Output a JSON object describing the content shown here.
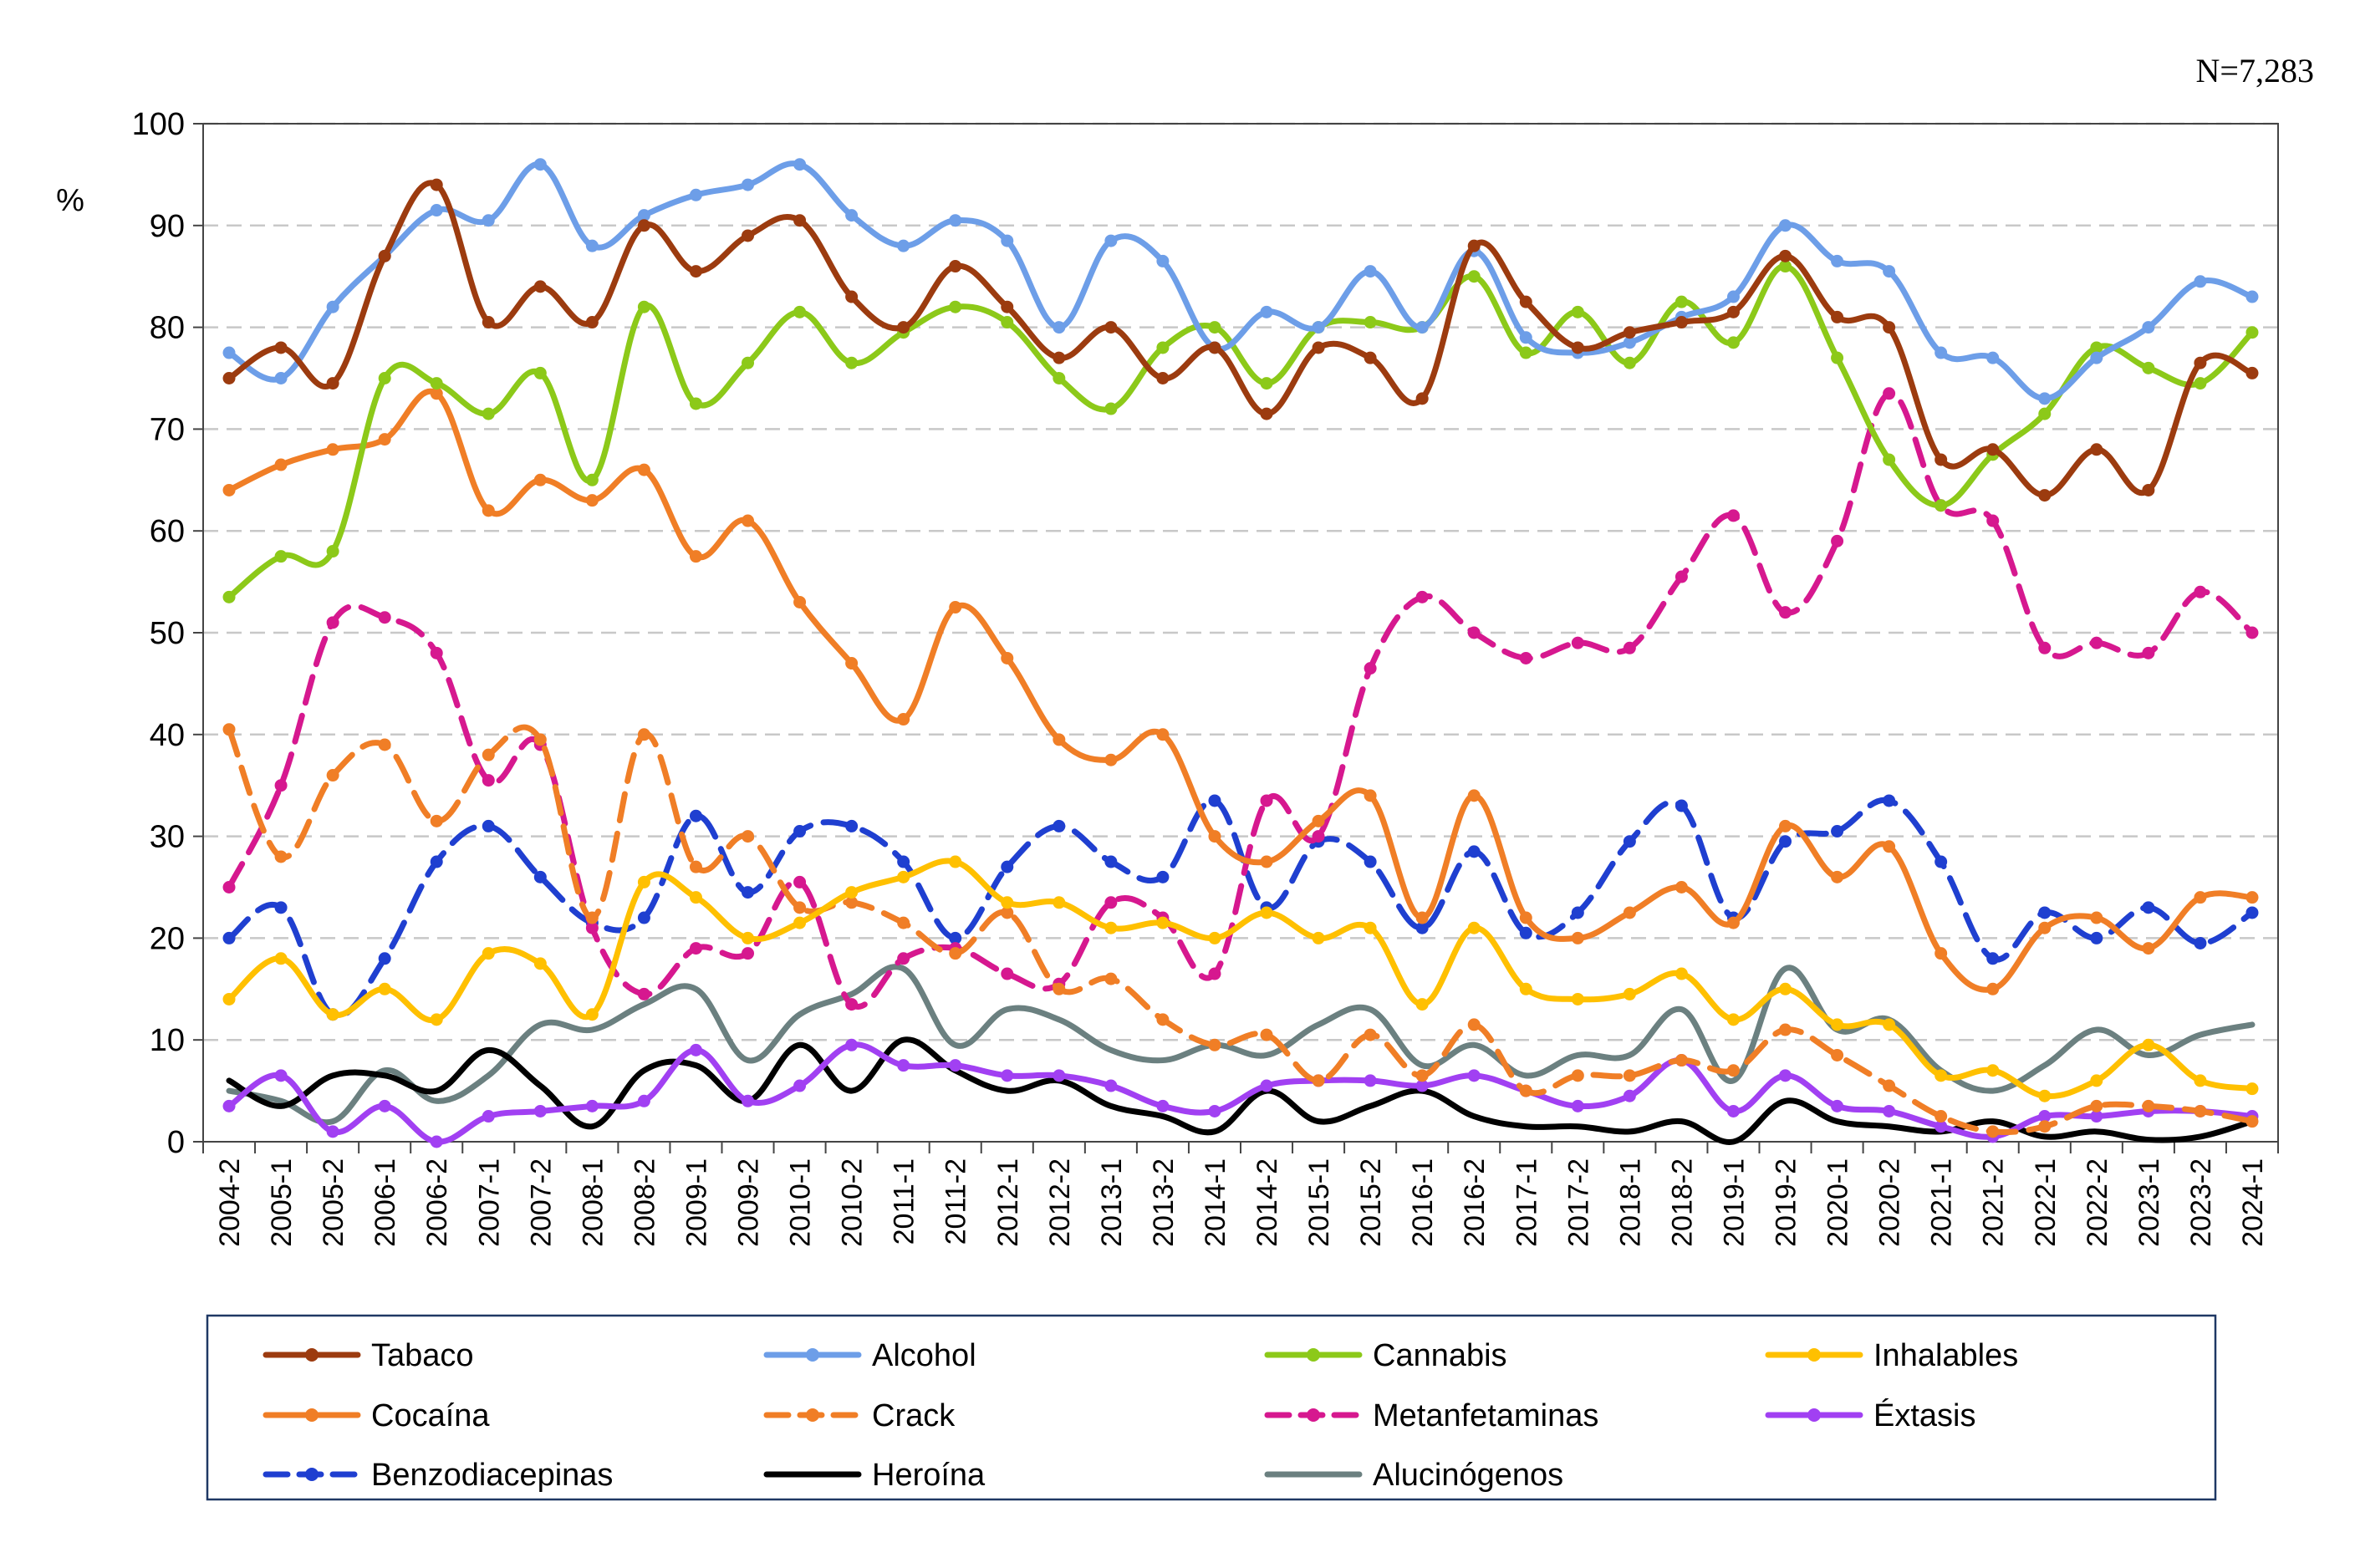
{
  "chart_data": {
    "type": "line",
    "note": "N=7,283",
    "ylabel": "%",
    "xlabel": "",
    "ylim": [
      0,
      100
    ],
    "yticks": [
      0,
      10,
      20,
      30,
      40,
      50,
      60,
      70,
      80,
      90,
      100
    ],
    "grid": "horizontal dashed",
    "legend_position": "bottom",
    "categories": [
      "2004-2",
      "2005-1",
      "2005-2",
      "2006-1",
      "2006-2",
      "2007-1",
      "2007-2",
      "2008-1",
      "2008-2",
      "2009-1",
      "2009-2",
      "2010-1",
      "2010-2",
      "2011-1",
      "2011-2",
      "2012-1",
      "2012-2",
      "2013-1",
      "2013-2",
      "2014-1",
      "2014-2",
      "2015-1",
      "2015-2",
      "2016-1",
      "2016-2",
      "2017-1",
      "2017-2",
      "2018-1",
      "2018-2",
      "2019-1",
      "2019-2",
      "2020-1",
      "2020-2",
      "2021-1",
      "2021-2",
      "2022-1",
      "2022-2",
      "2023-1",
      "2023-2",
      "2024-1"
    ],
    "series": [
      {
        "name": "Tabaco",
        "color": "#9c3b0f",
        "dash": "solid",
        "marker": true,
        "values": [
          75,
          78,
          74.5,
          87,
          94,
          80.5,
          84,
          80.5,
          90,
          85.5,
          89,
          90.5,
          83,
          80,
          86,
          82,
          77,
          80,
          75,
          78,
          71.5,
          78,
          77,
          73,
          88,
          82.5,
          78,
          79.5,
          80.5,
          81.5,
          87,
          81,
          80,
          67,
          68,
          63.5,
          68,
          64,
          76.5,
          75.5
        ]
      },
      {
        "name": "Alcohol",
        "color": "#6d9ee8",
        "dash": "solid",
        "marker": true,
        "values": [
          77.5,
          75,
          82,
          87,
          91.5,
          90.5,
          96,
          88,
          91,
          93,
          94,
          96,
          91,
          88,
          90.5,
          88.5,
          80,
          88.5,
          86.5,
          78,
          81.5,
          80,
          85.5,
          80,
          87.5,
          79,
          77.5,
          78.5,
          81,
          83,
          90,
          86.5,
          85.5,
          77.5,
          77,
          73,
          77,
          80,
          84.5,
          83
        ]
      },
      {
        "name": "Cannabis",
        "color": "#8cc919",
        "dash": "solid",
        "marker": true,
        "values": [
          53.5,
          57.5,
          58,
          75,
          74.5,
          71.5,
          75.5,
          65,
          82,
          72.5,
          76.5,
          81.5,
          76.5,
          79.5,
          82,
          80.5,
          75,
          72,
          78,
          80,
          74.5,
          80,
          80.5,
          80,
          85,
          77.5,
          81.5,
          76.5,
          82.5,
          78.5,
          86,
          77,
          67,
          62.5,
          67.5,
          71.5,
          78,
          76,
          74.5,
          79.5
        ]
      },
      {
        "name": "Inhalables",
        "color": "#ffc000",
        "dash": "solid",
        "marker": true,
        "values": [
          14,
          18,
          12.5,
          15,
          12,
          18.5,
          17.5,
          12.5,
          25.5,
          24,
          20,
          21.5,
          24.5,
          26,
          27.5,
          23.5,
          23.5,
          21,
          21.5,
          20,
          22.5,
          20,
          21,
          13.5,
          21,
          15,
          14,
          14.5,
          16.5,
          12,
          15,
          11.5,
          11.5,
          6.5,
          7,
          4.5,
          6,
          9.5,
          6,
          5.2
        ]
      },
      {
        "name": "Cocaína",
        "color": "#f07e26",
        "dash": "solid",
        "marker": true,
        "values": [
          64,
          66.5,
          68,
          69,
          73.5,
          62,
          65,
          63,
          66,
          57.5,
          61,
          53,
          47,
          41.5,
          52.5,
          47.5,
          39.5,
          37.5,
          40,
          30,
          27.5,
          31.5,
          34,
          22,
          34,
          22,
          20,
          22.5,
          25,
          21.5,
          31,
          26,
          29,
          18.5,
          15,
          21,
          22,
          19,
          24,
          24
        ]
      },
      {
        "name": "Crack",
        "color": "#f07e26",
        "dash": "dashed",
        "marker": true,
        "values": [
          40.5,
          28,
          36,
          39,
          31.5,
          38,
          39.5,
          22,
          40,
          27,
          30,
          23,
          23.5,
          21.5,
          18.5,
          22.5,
          15,
          16,
          12,
          9.5,
          10.5,
          6,
          10.5,
          6.5,
          11.5,
          5,
          6.5,
          6.5,
          8,
          7,
          11,
          8.5,
          5.5,
          2.5,
          1,
          1.5,
          3.5,
          3.5,
          3,
          2
        ]
      },
      {
        "name": "Metanfetaminas",
        "color": "#d6188f",
        "dash": "dashed",
        "marker": true,
        "values": [
          25,
          35,
          51,
          51.5,
          48,
          35.5,
          39,
          21,
          14.5,
          19,
          18.5,
          25.5,
          13.5,
          18,
          19,
          16.5,
          15.5,
          23.5,
          22,
          16.5,
          33.5,
          30,
          46.5,
          53.5,
          50,
          47.5,
          49,
          48.5,
          55.5,
          61.5,
          52,
          59,
          73.5,
          62.5,
          61,
          48.5,
          49,
          48,
          54,
          50
        ]
      },
      {
        "name": "Éxtasis",
        "color": "#a140f2",
        "dash": "solid",
        "marker": true,
        "values": [
          3.5,
          6.5,
          1,
          3.5,
          0,
          2.5,
          3,
          3.5,
          4,
          9,
          4,
          5.5,
          9.5,
          7.5,
          7.5,
          6.5,
          6.5,
          5.5,
          3.5,
          3,
          5.5,
          6,
          6,
          5.5,
          6.5,
          5,
          3.5,
          4.5,
          8,
          3,
          6.5,
          3.5,
          3,
          1.5,
          0.5,
          2.5,
          2.5,
          3,
          3,
          2.5
        ]
      },
      {
        "name": "Benzodiacepinas",
        "color": "#1f3fd0",
        "dash": "dashed",
        "marker": true,
        "values": [
          20,
          23,
          12.5,
          18,
          27.5,
          31,
          26,
          21.5,
          22,
          32,
          24.5,
          30.5,
          31,
          27.5,
          20,
          27,
          31,
          27.5,
          26,
          33.5,
          23,
          29.5,
          27.5,
          21,
          28.5,
          20.5,
          22.5,
          29.5,
          33,
          22,
          29.5,
          30.5,
          33.5,
          27.5,
          18,
          22.5,
          20,
          23,
          19.5,
          22.5
        ]
      },
      {
        "name": "Heroína",
        "color": "#000000",
        "dash": "solid",
        "marker": false,
        "values": [
          6,
          3.5,
          6.5,
          6.5,
          5,
          9,
          5.5,
          1.5,
          7,
          7.5,
          4,
          9.5,
          5,
          10,
          7,
          5,
          6,
          3.5,
          2.5,
          1,
          5,
          2,
          3.5,
          5,
          2.5,
          1.5,
          1.5,
          1,
          2,
          0,
          4,
          2,
          1.5,
          1,
          2,
          0.5,
          1,
          0.2,
          0.5,
          2
        ]
      },
      {
        "name": "Alucinógenos",
        "color": "#6b8080",
        "dash": "solid",
        "marker": false,
        "values": [
          5,
          4,
          2,
          7,
          4,
          6.5,
          11.5,
          11,
          13.5,
          15,
          8,
          12.5,
          14.5,
          17,
          9.5,
          13,
          12,
          9,
          8,
          9.5,
          8.5,
          11.5,
          13,
          7.5,
          9.5,
          6.5,
          8.5,
          8.5,
          13,
          6,
          17,
          11,
          12,
          7,
          5,
          7.5,
          11,
          8.5,
          10.5,
          11.5
        ]
      }
    ]
  }
}
